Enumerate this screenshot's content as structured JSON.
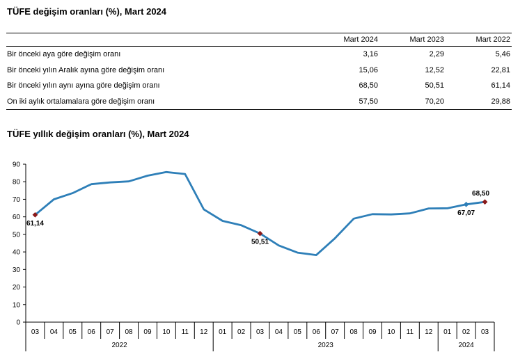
{
  "table_title": "TÜFE değişim oranları (%), Mart 2024",
  "table": {
    "headers": [
      "",
      "Mart 2024",
      "Mart 2023",
      "Mart 2022"
    ],
    "rows": [
      {
        "label": "Bir önceki aya göre değişim oranı",
        "values": [
          "3,16",
          "2,29",
          "5,46"
        ]
      },
      {
        "label": "Bir önceki yılın Aralık ayına göre değişim oranı",
        "values": [
          "15,06",
          "12,52",
          "22,81"
        ]
      },
      {
        "label": "Bir önceki yılın aynı ayına göre değişim oranı",
        "values": [
          "68,50",
          "50,51",
          "61,14"
        ]
      },
      {
        "label": "On iki aylık ortalamalara göre değişim oranı",
        "values": [
          "57,50",
          "70,20",
          "29,88"
        ]
      }
    ]
  },
  "chart_title": "TÜFE yıllık değişim oranları (%), Mart 2024",
  "chart_data": {
    "type": "line",
    "title": "TÜFE yıllık değişim oranları (%), Mart 2024",
    "xlabel": "",
    "ylabel": "",
    "ylim": [
      0,
      90
    ],
    "yticks": [
      "0",
      "10",
      "20",
      "30",
      "40",
      "50",
      "60",
      "70",
      "80",
      "90"
    ],
    "categories": [
      "03",
      "04",
      "05",
      "06",
      "07",
      "08",
      "09",
      "10",
      "11",
      "12",
      "01",
      "02",
      "03",
      "04",
      "05",
      "06",
      "07",
      "08",
      "09",
      "10",
      "11",
      "12",
      "01",
      "02",
      "03"
    ],
    "years": [
      {
        "label": "2022",
        "count": 10
      },
      {
        "label": "2023",
        "count": 12
      },
      {
        "label": "2024",
        "count": 3
      }
    ],
    "series": [
      {
        "values": [
          61.14,
          69.97,
          73.5,
          78.62,
          79.6,
          80.21,
          83.45,
          85.51,
          84.39,
          64.27,
          57.68,
          55.18,
          50.51,
          43.68,
          39.59,
          38.21,
          47.83,
          58.94,
          61.53,
          61.36,
          61.98,
          64.77,
          64.86,
          67.07,
          68.5
        ],
        "color": "#2e7fb8"
      }
    ],
    "markers": [
      {
        "index": 0,
        "label": "61,14",
        "color": "#8b1a1a",
        "pos": "below"
      },
      {
        "index": 12,
        "label": "50,51",
        "color": "#8b1a1a",
        "pos": "below"
      },
      {
        "index": 23,
        "label": "67,07",
        "color": "#2e7fb8",
        "pos": "below"
      },
      {
        "index": 24,
        "label": "68,50",
        "color": "#8b1a1a",
        "pos": "above"
      }
    ],
    "grid": false
  }
}
